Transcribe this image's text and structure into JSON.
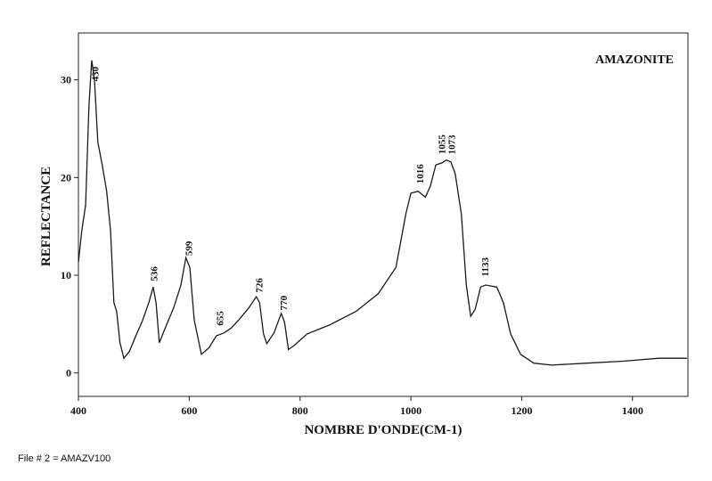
{
  "chart_data": {
    "type": "line",
    "name": "AMAZONITE",
    "x_label": "NOMBRE D'ONDE(CM-1)",
    "y_label": "REFLECTANCE",
    "x": [
      400,
      406,
      413,
      419,
      424,
      429,
      435,
      443,
      451,
      458,
      464,
      469,
      475,
      482,
      492,
      503,
      516,
      527,
      535,
      540,
      546,
      556,
      572,
      585,
      594,
      601,
      609,
      622,
      636,
      649,
      663,
      676,
      692,
      708,
      721,
      727,
      734,
      740,
      753,
      766,
      772,
      779,
      789,
      813,
      853,
      901,
      941,
      973,
      991,
      1000,
      1013,
      1026,
      1035,
      1045,
      1056,
      1064,
      1072,
      1080,
      1091,
      1100,
      1108,
      1116,
      1126,
      1135,
      1155,
      1167,
      1180,
      1198,
      1222,
      1254,
      1318,
      1383,
      1447,
      1498
    ],
    "values": [
      11.3,
      14.5,
      17.2,
      27.3,
      32.0,
      30.0,
      23.6,
      21.3,
      18.6,
      14.5,
      7.2,
      6.3,
      3.1,
      1.5,
      2.2,
      3.7,
      5.4,
      7.2,
      8.8,
      7.2,
      3.1,
      4.5,
      6.7,
      9.0,
      11.8,
      10.8,
      5.4,
      1.9,
      2.6,
      3.8,
      4.1,
      4.6,
      5.6,
      6.7,
      7.8,
      7.2,
      4.0,
      3.0,
      4.1,
      6.1,
      5.2,
      2.4,
      2.8,
      4.0,
      4.9,
      6.3,
      8.1,
      10.8,
      16.3,
      18.4,
      18.6,
      18.0,
      19.1,
      21.3,
      21.5,
      21.8,
      21.6,
      20.4,
      16.3,
      9.0,
      5.8,
      6.5,
      8.8,
      9.0,
      8.8,
      7.2,
      4.0,
      1.9,
      1.0,
      0.8,
      1.0,
      1.2,
      1.5,
      1.5
    ],
    "color": "#1a1a1a",
    "peaks": [
      430,
      536,
      599,
      655,
      726,
      770,
      1016,
      1055,
      1073,
      1133
    ],
    "xlim": [
      400,
      1500
    ],
    "ylim": [
      -2.4,
      34.8
    ],
    "xticks": [
      400,
      600,
      800,
      1000,
      1200,
      1400
    ],
    "yticks": [
      0,
      10,
      20,
      30
    ]
  },
  "footer": "File # 2 = AMAZV100"
}
